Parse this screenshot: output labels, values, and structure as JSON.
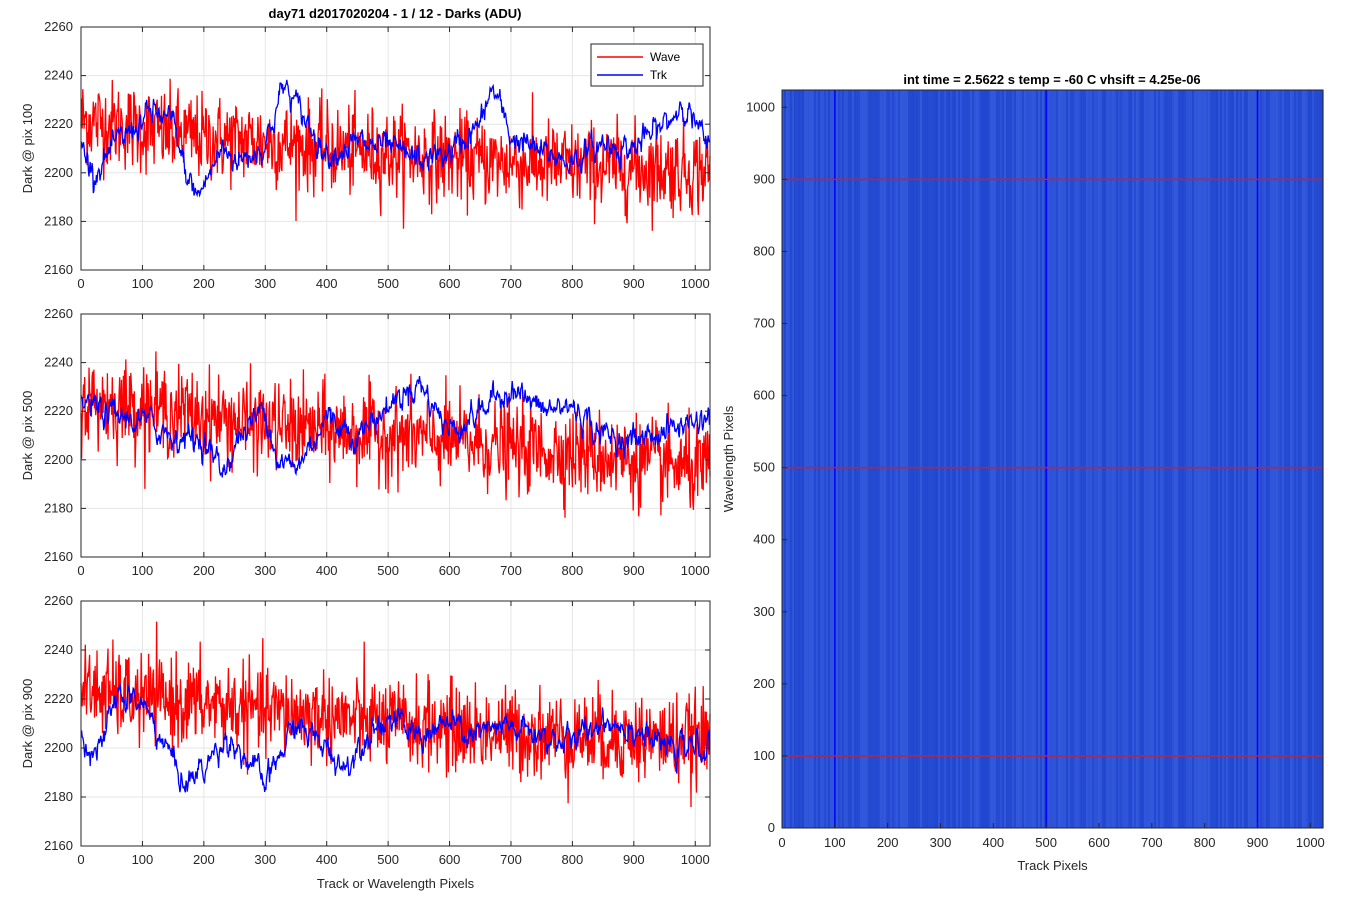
{
  "figure_title": "day71 d2017020204 - 1 / 12 - Darks (ADU)",
  "shared_xlabel": "Track or Wavelength Pixels",
  "colors": {
    "wave": "#ff0000",
    "trk": "#0000ff",
    "image_base": "#2a4fd6",
    "grid": "#e6e6e6"
  },
  "chart_data": [
    {
      "type": "line",
      "ylabel": "Dark @ pix 100",
      "xlim": [
        0,
        1024
      ],
      "ylim": [
        2160,
        2260
      ],
      "xticks": [
        0,
        100,
        200,
        300,
        400,
        500,
        600,
        700,
        800,
        900,
        1000
      ],
      "yticks": [
        2160,
        2180,
        2200,
        2220,
        2240,
        2260
      ],
      "grid": true,
      "legend": "top-right",
      "series": [
        {
          "name": "Wave",
          "color": "#ff0000",
          "mean": 2212,
          "noise": 9,
          "anchors": [
            [
              0,
              2222
            ],
            [
              100,
              2218
            ],
            [
              200,
              2214
            ],
            [
              300,
              2213
            ],
            [
              400,
              2210
            ],
            [
              500,
              2208
            ],
            [
              600,
              2206
            ],
            [
              700,
              2204
            ],
            [
              800,
              2203
            ],
            [
              900,
              2202
            ],
            [
              1024,
              2201
            ]
          ]
        },
        {
          "name": "Trk",
          "color": "#0000ff",
          "noise": 4,
          "anchors": [
            [
              0,
              2212
            ],
            [
              20,
              2200
            ],
            [
              60,
              2212
            ],
            [
              100,
              2222
            ],
            [
              120,
              2225
            ],
            [
              150,
              2220
            ],
            [
              170,
              2200
            ],
            [
              190,
              2190
            ],
            [
              230,
              2210
            ],
            [
              260,
              2205
            ],
            [
              300,
              2212
            ],
            [
              330,
              2236
            ],
            [
              350,
              2228
            ],
            [
              400,
              2208
            ],
            [
              450,
              2212
            ],
            [
              500,
              2210
            ],
            [
              550,
              2205
            ],
            [
              600,
              2208
            ],
            [
              650,
              2220
            ],
            [
              670,
              2235
            ],
            [
              700,
              2215
            ],
            [
              750,
              2208
            ],
            [
              800,
              2205
            ],
            [
              850,
              2212
            ],
            [
              900,
              2210
            ],
            [
              960,
              2222
            ],
            [
              980,
              2230
            ],
            [
              1024,
              2208
            ]
          ]
        }
      ]
    },
    {
      "type": "line",
      "ylabel": "Dark @ pix 500",
      "xlim": [
        0,
        1024
      ],
      "ylim": [
        2160,
        2260
      ],
      "xticks": [
        0,
        100,
        200,
        300,
        400,
        500,
        600,
        700,
        800,
        900,
        1000
      ],
      "yticks": [
        2160,
        2180,
        2200,
        2220,
        2240,
        2260
      ],
      "grid": true,
      "series": [
        {
          "name": "Wave",
          "color": "#ff0000",
          "noise": 9,
          "anchors": [
            [
              0,
              2224
            ],
            [
              100,
              2222
            ],
            [
              200,
              2218
            ],
            [
              300,
              2214
            ],
            [
              400,
              2212
            ],
            [
              500,
              2210
            ],
            [
              600,
              2208
            ],
            [
              700,
              2205
            ],
            [
              800,
              2203
            ],
            [
              900,
              2200
            ],
            [
              1024,
              2195
            ]
          ]
        },
        {
          "name": "Trk",
          "color": "#0000ff",
          "noise": 4,
          "anchors": [
            [
              0,
              2224
            ],
            [
              50,
              2218
            ],
            [
              100,
              2216
            ],
            [
              150,
              2210
            ],
            [
              200,
              2208
            ],
            [
              230,
              2195
            ],
            [
              260,
              2210
            ],
            [
              300,
              2222
            ],
            [
              320,
              2200
            ],
            [
              350,
              2196
            ],
            [
              400,
              2218
            ],
            [
              450,
              2210
            ],
            [
              500,
              2222
            ],
            [
              550,
              2232
            ],
            [
              600,
              2212
            ],
            [
              650,
              2220
            ],
            [
              700,
              2230
            ],
            [
              750,
              2220
            ],
            [
              800,
              2222
            ],
            [
              850,
              2210
            ],
            [
              900,
              2208
            ],
            [
              950,
              2212
            ],
            [
              1024,
              2218
            ]
          ]
        }
      ]
    },
    {
      "type": "line",
      "ylabel": "Dark @ pix 900",
      "xlabel": "Track or Wavelength Pixels",
      "xlim": [
        0,
        1024
      ],
      "ylim": [
        2160,
        2260
      ],
      "xticks": [
        0,
        100,
        200,
        300,
        400,
        500,
        600,
        700,
        800,
        900,
        1000
      ],
      "yticks": [
        2160,
        2180,
        2200,
        2220,
        2240,
        2260
      ],
      "grid": true,
      "series": [
        {
          "name": "Wave",
          "color": "#ff0000",
          "noise": 9,
          "anchors": [
            [
              0,
              2224
            ],
            [
              100,
              2220
            ],
            [
              200,
              2218
            ],
            [
              300,
              2215
            ],
            [
              400,
              2213
            ],
            [
              500,
              2210
            ],
            [
              600,
              2208
            ],
            [
              700,
              2206
            ],
            [
              800,
              2205
            ],
            [
              900,
              2204
            ],
            [
              1024,
              2203
            ]
          ]
        },
        {
          "name": "Trk",
          "color": "#0000ff",
          "noise": 4,
          "anchors": [
            [
              0,
              2205
            ],
            [
              30,
              2198
            ],
            [
              60,
              2222
            ],
            [
              100,
              2218
            ],
            [
              140,
              2200
            ],
            [
              170,
              2185
            ],
            [
              210,
              2195
            ],
            [
              240,
              2205
            ],
            [
              270,
              2195
            ],
            [
              300,
              2185
            ],
            [
              350,
              2210
            ],
            [
              400,
              2200
            ],
            [
              430,
              2192
            ],
            [
              470,
              2208
            ],
            [
              500,
              2212
            ],
            [
              550,
              2205
            ],
            [
              600,
              2210
            ],
            [
              630,
              2205
            ],
            [
              700,
              2208
            ],
            [
              750,
              2205
            ],
            [
              800,
              2202
            ],
            [
              850,
              2212
            ],
            [
              900,
              2208
            ],
            [
              950,
              2200
            ],
            [
              1024,
              2200
            ]
          ]
        }
      ]
    },
    {
      "type": "heatmap",
      "title": "int time = 2.5622 s    temp = -60 C    vhsift = 4.25e-06",
      "xlabel": "Track Pixels",
      "ylabel": "Wavelength Pixels",
      "xlim": [
        0,
        1024
      ],
      "ylim": [
        0,
        1024
      ],
      "xticks": [
        0,
        100,
        200,
        300,
        400,
        500,
        600,
        700,
        800,
        900,
        1000
      ],
      "yticks": [
        0,
        100,
        200,
        300,
        400,
        500,
        600,
        700,
        800,
        900,
        1000
      ],
      "grid": false,
      "vlines": [
        100,
        500,
        900
      ],
      "hlines": [
        100,
        500,
        900
      ]
    }
  ]
}
